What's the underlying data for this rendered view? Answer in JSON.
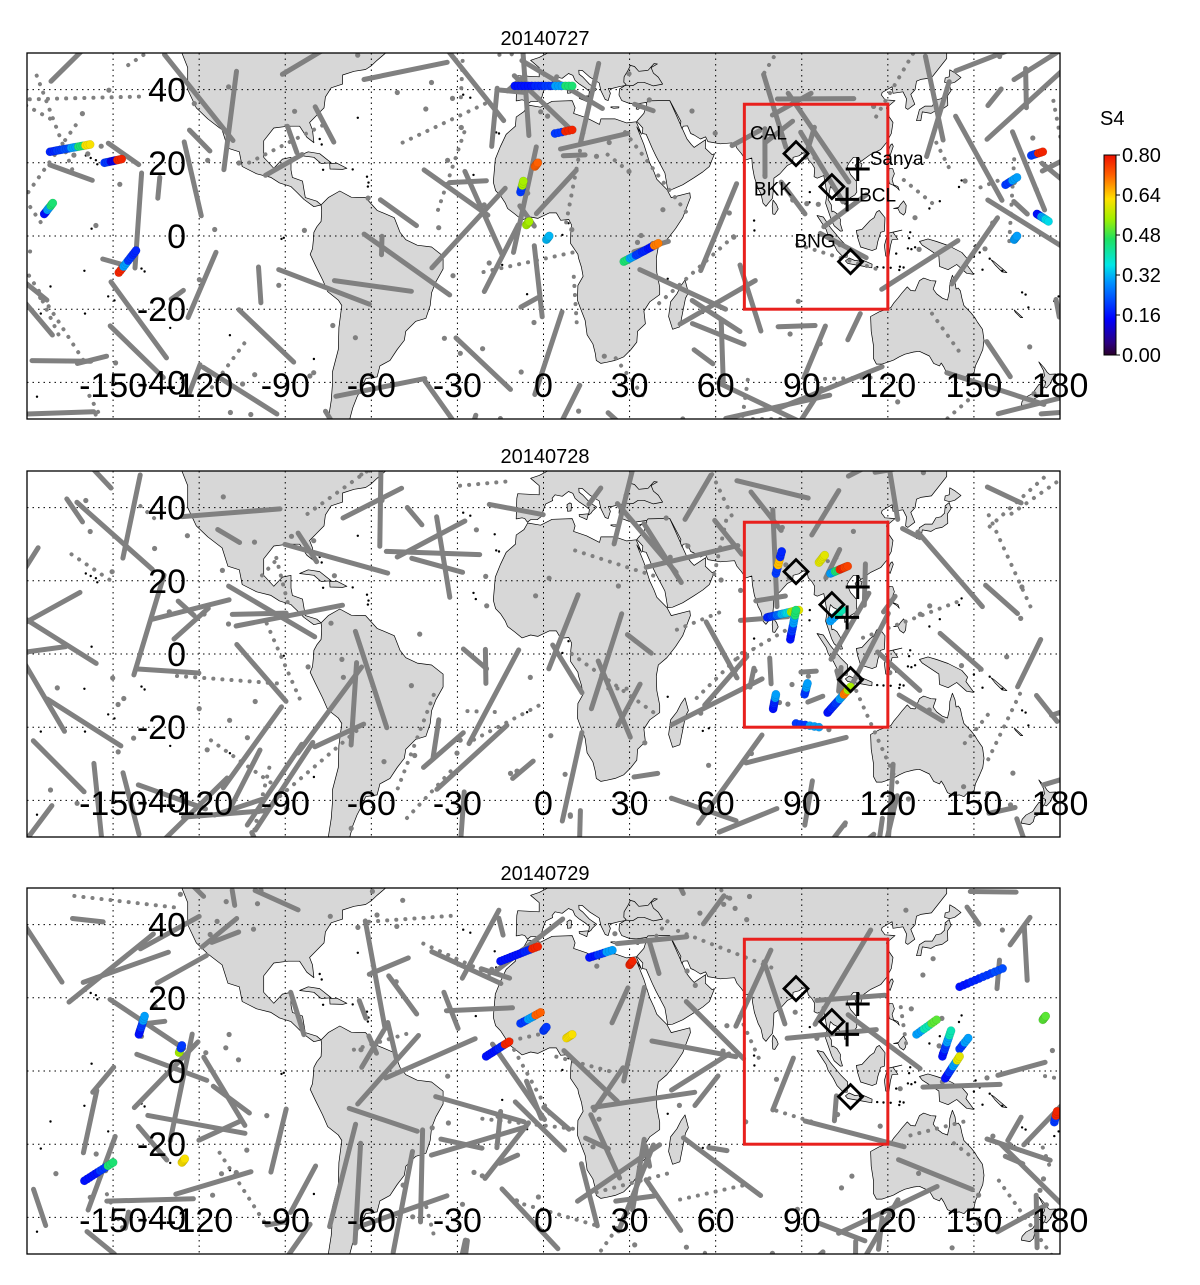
{
  "panels": [
    {
      "date": "20140727",
      "show_station_labels": true,
      "scint_tracks": [
        {
          "lon": -172,
          "lat": 23,
          "lon2": -158,
          "lat2": 25,
          "s4": [
            0.18,
            0.2,
            0.22,
            0.3,
            0.45,
            0.62
          ]
        },
        {
          "lon": -153,
          "lat": 20,
          "lon2": -147,
          "lat2": 21,
          "s4": [
            0.2,
            0.12,
            0.78
          ]
        },
        {
          "lon": -174,
          "lat": 6,
          "lon2": -171,
          "lat2": 9,
          "s4": [
            0.16,
            0.3,
            0.45
          ]
        },
        {
          "lon": -148,
          "lat": -10,
          "lon2": -142,
          "lat2": -4,
          "s4": [
            0.78,
            0.3,
            0.2,
            0.18
          ]
        },
        {
          "lon": -10,
          "lat": 41,
          "lon2": 10,
          "lat2": 41,
          "s4": [
            0.16,
            0.16,
            0.18,
            0.2,
            0.3,
            0.45
          ]
        },
        {
          "lon": 4,
          "lat": 28,
          "lon2": 10,
          "lat2": 29,
          "s4": [
            0.2,
            0.78
          ]
        },
        {
          "lon": -8,
          "lat": 12,
          "lon2": -7,
          "lat2": 15,
          "s4": [
            0.2,
            0.55
          ]
        },
        {
          "lon": -3,
          "lat": 19,
          "lon2": -2,
          "lat2": 20,
          "s4": [
            0.72
          ]
        },
        {
          "lon": -6,
          "lat": 3,
          "lon2": -5,
          "lat2": 4,
          "s4": [
            0.55
          ]
        },
        {
          "lon": 1,
          "lat": -1,
          "lon2": 2,
          "lat2": 0,
          "s4": [
            0.32
          ]
        },
        {
          "lon": 28,
          "lat": -7,
          "lon2": 40,
          "lat2": -2,
          "s4": [
            0.45,
            0.3,
            0.2,
            0.18,
            0.16,
            0.7
          ]
        },
        {
          "lon": 161,
          "lat": 14,
          "lon2": 165,
          "lat2": 16,
          "s4": [
            0.2,
            0.3
          ]
        },
        {
          "lon": 170,
          "lat": 22,
          "lon2": 174,
          "lat2": 23,
          "s4": [
            0.2,
            0.78
          ]
        },
        {
          "lon": 172,
          "lat": 6,
          "lon2": 176,
          "lat2": 4,
          "s4": [
            0.16,
            0.3,
            0.35
          ]
        },
        {
          "lon": 164,
          "lat": -1,
          "lon2": 165,
          "lat2": 0,
          "s4": [
            0.3
          ]
        }
      ]
    },
    {
      "date": "20140728",
      "show_station_labels": false,
      "scint_tracks": [
        {
          "lon": 81,
          "lat": 22,
          "lon2": 83,
          "lat2": 28,
          "s4": [
            0.2,
            0.65,
            0.18
          ]
        },
        {
          "lon": 96,
          "lat": 25,
          "lon2": 98,
          "lat2": 27,
          "s4": [
            0.6
          ]
        },
        {
          "lon": 100,
          "lat": 22,
          "lon2": 106,
          "lat2": 24,
          "s4": [
            0.3,
            0.45,
            0.78,
            0.75
          ]
        },
        {
          "lon": 78,
          "lat": 10,
          "lon2": 89,
          "lat2": 12,
          "s4": [
            0.18,
            0.2,
            0.25,
            0.32,
            0.35,
            0.55,
            0.6
          ]
        },
        {
          "lon": 86,
          "lat": 4,
          "lon2": 88,
          "lat2": 12,
          "s4": [
            0.16,
            0.2,
            0.3,
            0.45
          ]
        },
        {
          "lon": 100,
          "lat": 9,
          "lon2": 104,
          "lat2": 12,
          "s4": [
            0.3,
            0.4
          ]
        },
        {
          "lon": 80,
          "lat": -15,
          "lon2": 81,
          "lat2": -11,
          "s4": [
            0.16,
            0.18,
            0.3
          ]
        },
        {
          "lon": 91,
          "lat": -11,
          "lon2": 92,
          "lat2": -8,
          "s4": [
            0.2,
            0.3
          ]
        },
        {
          "lon": 99,
          "lat": -16,
          "lon2": 107,
          "lat2": -9,
          "s4": [
            0.16,
            0.18,
            0.2,
            0.3,
            0.7,
            0.55
          ]
        },
        {
          "lon": 88,
          "lat": -19,
          "lon2": 96,
          "lat2": -20,
          "s4": [
            0.2,
            0.3
          ]
        }
      ]
    },
    {
      "date": "20140729",
      "show_station_labels": false,
      "scint_tracks": [
        {
          "lon": -15,
          "lat": 30,
          "lon2": -2,
          "lat2": 34,
          "s4": [
            0.16,
            0.16,
            0.16,
            0.18,
            0.78
          ]
        },
        {
          "lon": 16,
          "lat": 31,
          "lon2": 24,
          "lat2": 33,
          "s4": [
            0.16,
            0.2,
            0.3
          ]
        },
        {
          "lon": 30,
          "lat": 29,
          "lon2": 31,
          "lat2": 30,
          "s4": [
            0.78
          ]
        },
        {
          "lon": -8,
          "lat": 13,
          "lon2": -1,
          "lat2": 16,
          "s4": [
            0.2,
            0.3,
            0.72
          ]
        },
        {
          "lon": -20,
          "lat": 4,
          "lon2": -12,
          "lat2": 8,
          "s4": [
            0.16,
            0.16,
            0.18,
            0.78
          ]
        },
        {
          "lon": 8,
          "lat": 9,
          "lon2": 10,
          "lat2": 10,
          "s4": [
            0.62
          ]
        },
        {
          "lon": 0,
          "lat": 11,
          "lon2": 1,
          "lat2": 12,
          "s4": [
            0.2
          ]
        },
        {
          "lon": -141,
          "lat": 10,
          "lon2": -139,
          "lat2": 15,
          "s4": [
            0.16,
            0.2,
            0.3
          ]
        },
        {
          "lon": -127,
          "lat": 5,
          "lon2": -126,
          "lat2": 7,
          "s4": [
            0.55,
            0.2
          ]
        },
        {
          "lon": -160,
          "lat": -30,
          "lon2": -150,
          "lat2": -25,
          "s4": [
            0.16,
            0.16,
            0.2,
            0.45
          ]
        },
        {
          "lon": -126,
          "lat": -25,
          "lon2": -125,
          "lat2": -24,
          "s4": [
            0.62
          ]
        },
        {
          "lon": 145,
          "lat": 23,
          "lon2": 160,
          "lat2": 28,
          "s4": [
            0.16,
            0.18,
            0.2,
            0.22
          ]
        },
        {
          "lon": 130,
          "lat": 10,
          "lon2": 137,
          "lat2": 14,
          "s4": [
            0.3,
            0.4,
            0.5
          ]
        },
        {
          "lon": 139,
          "lat": 4,
          "lon2": 142,
          "lat2": 11,
          "s4": [
            0.16,
            0.2,
            0.3,
            0.4
          ]
        },
        {
          "lon": 145,
          "lat": 6,
          "lon2": 148,
          "lat2": 9,
          "s4": [
            0.2,
            0.3
          ]
        },
        {
          "lon": 140,
          "lat": -2,
          "lon2": 145,
          "lat2": 4,
          "s4": [
            0.16,
            0.2,
            0.3,
            0.6
          ]
        },
        {
          "lon": 174,
          "lat": 14,
          "lon2": 175,
          "lat2": 15,
          "s4": [
            0.5
          ]
        },
        {
          "lon": 178,
          "lat": -14,
          "lon2": 179,
          "lat2": -11,
          "s4": [
            0.2,
            0.78
          ]
        }
      ]
    }
  ],
  "map": {
    "lon_range": [
      -180,
      180
    ],
    "lat_range": [
      -50,
      50
    ],
    "x_ticks": [
      "-150",
      "-120",
      "-90",
      "-60",
      "-30",
      "0",
      "30",
      "60",
      "90",
      "120",
      "150",
      "180"
    ],
    "y_ticks": [
      "40",
      "20",
      "0",
      "-20",
      "-40"
    ],
    "x_tick_values": [
      -150,
      -120,
      -90,
      -60,
      -30,
      0,
      30,
      60,
      90,
      120,
      150,
      180
    ],
    "y_tick_values": [
      40,
      20,
      0,
      -20,
      -40
    ],
    "grid": "dotted",
    "region_box": {
      "lon_min": 70,
      "lon_max": 120,
      "lat_min": -20,
      "lat_max": 36,
      "color": "#e8201d"
    },
    "land_color": "#d7d7d7",
    "track_color": "#808080",
    "stations": [
      {
        "type": "diamond",
        "name": "CAL",
        "lon": 88,
        "lat": 22.5
      },
      {
        "type": "diamond",
        "name": "BKK",
        "lon": 100.5,
        "lat": 13.5
      },
      {
        "type": "diamond",
        "name": "BNG",
        "lon": 107,
        "lat": -7
      },
      {
        "type": "cross",
        "name": "Sanya",
        "lon": 109.5,
        "lat": 18.3
      },
      {
        "type": "cross",
        "name": "BCL",
        "lon": 105.8,
        "lat": 10
      }
    ]
  },
  "colorbar": {
    "label": "S4",
    "ticks": [
      "0.80",
      "0.64",
      "0.48",
      "0.32",
      "0.16",
      "0.00"
    ],
    "tick_values": [
      0.8,
      0.64,
      0.48,
      0.32,
      0.16,
      0
    ],
    "range": [
      0,
      0.8
    ],
    "colormap": "jet"
  }
}
